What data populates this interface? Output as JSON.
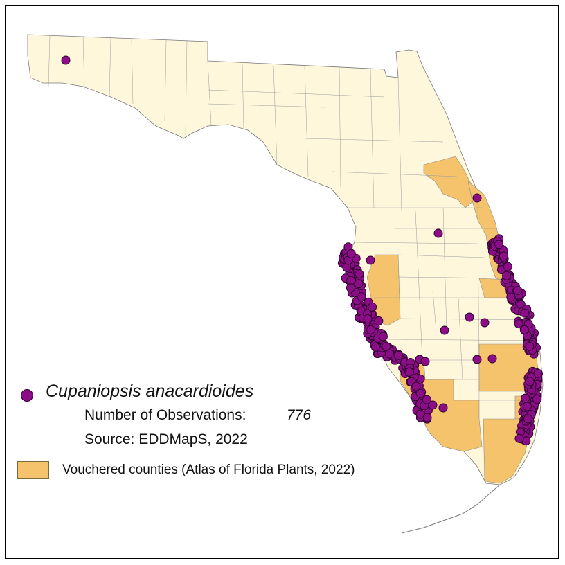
{
  "legend": {
    "species": "Cupaniopsis anacardioides",
    "observations_label": "Number of Observations:",
    "observations_value": "776",
    "source": "Source: EDDMapS, 2022",
    "vouchered_label": "Vouchered counties (Atlas of Florida Plants, 2022)"
  },
  "colors": {
    "land": "#fff7dc",
    "vouchered": "#f4c36c",
    "county_border": "#8c8c8c",
    "observation": "#8b0d87",
    "observation_outline": "#2a0028"
  },
  "icons": {
    "observation_symbol": "purple-circle-icon",
    "vouchered_symbol": "orange-swatch-icon"
  }
}
